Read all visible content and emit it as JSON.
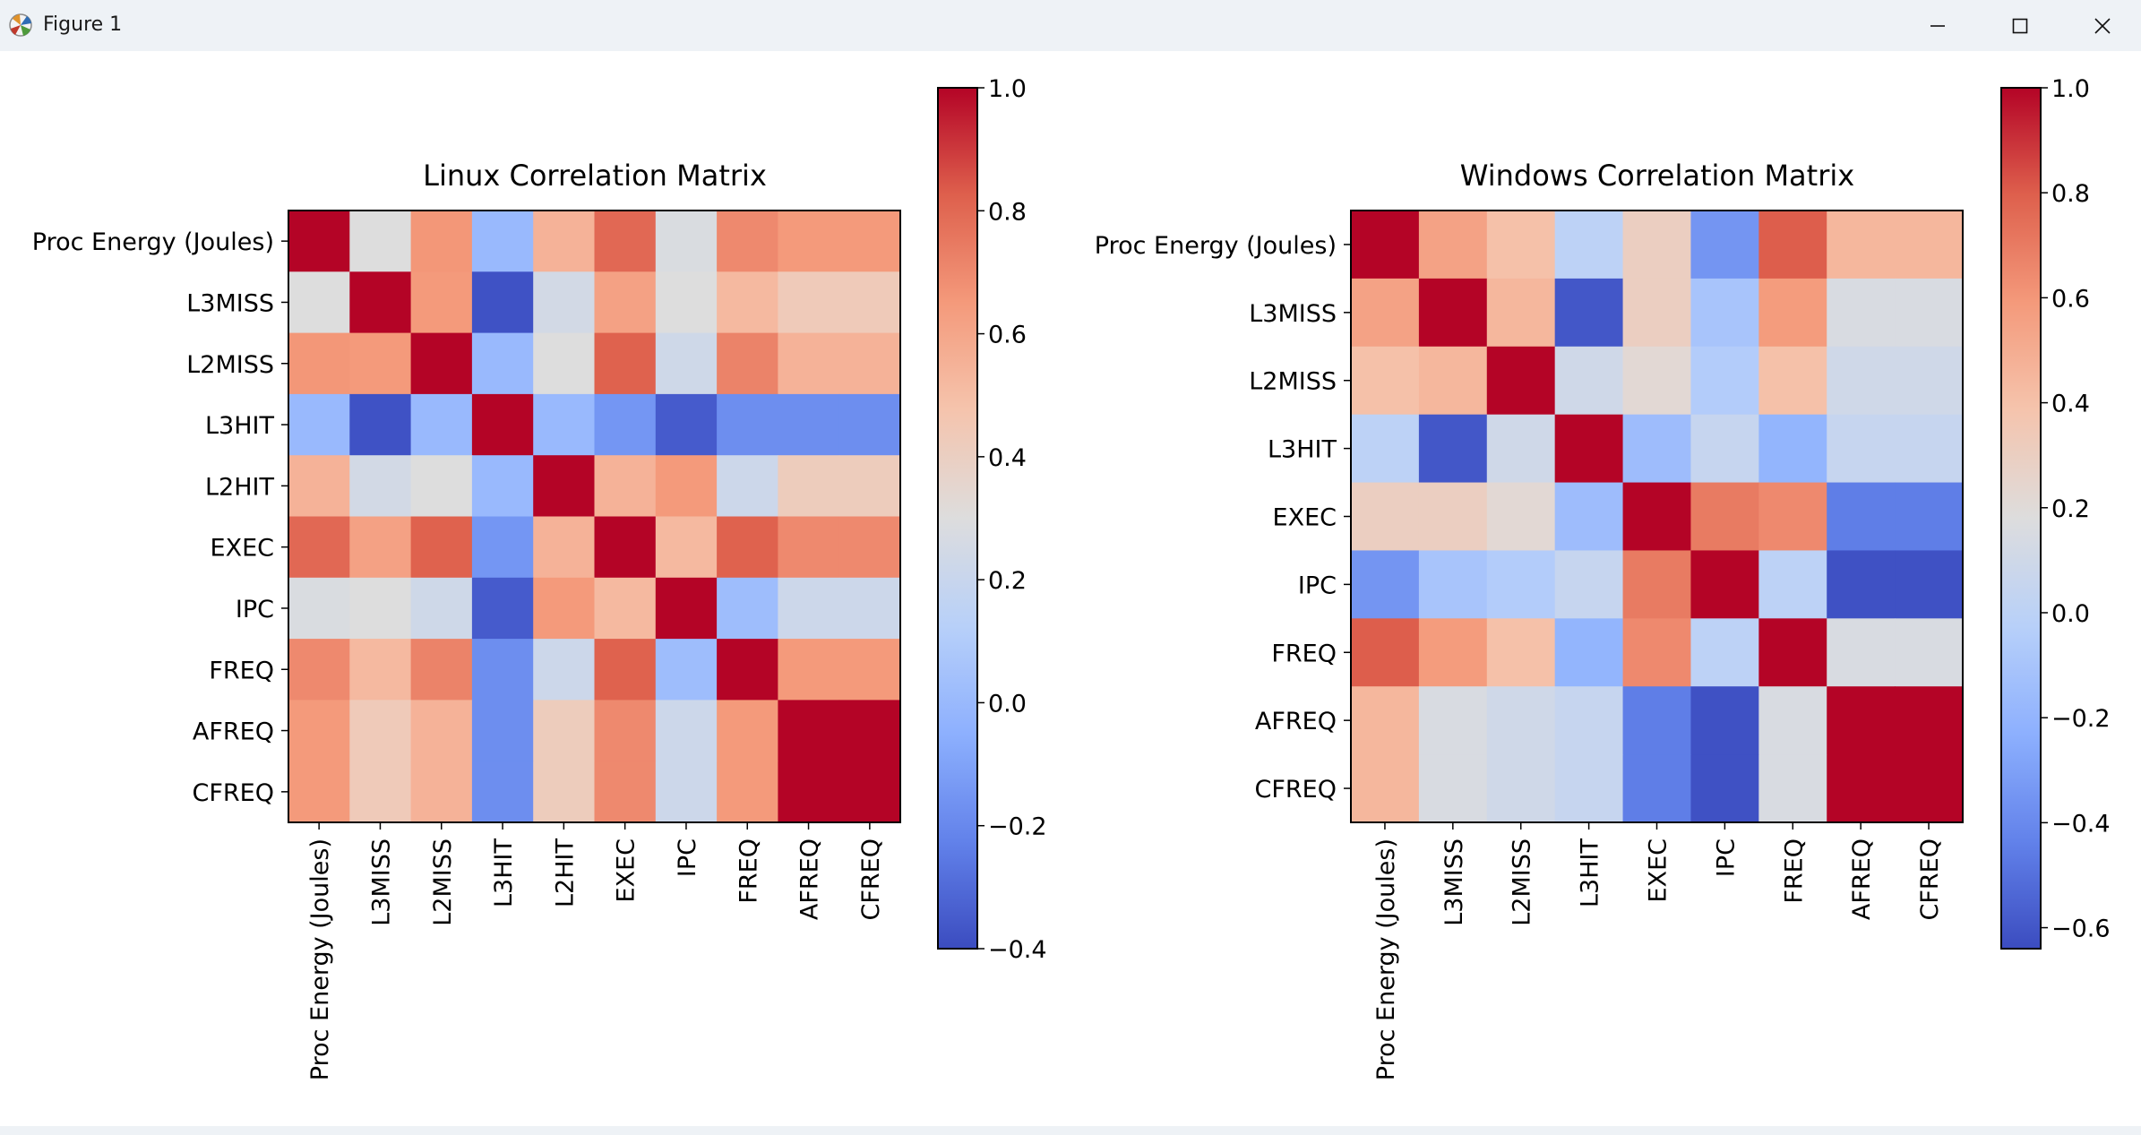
{
  "window": {
    "title": "Figure 1",
    "icons": {
      "app": "matplotlib-figure-icon",
      "minimize": "minimize-icon",
      "maximize": "maximize-icon",
      "close": "close-icon"
    }
  },
  "chart_data": [
    {
      "type": "heatmap",
      "title": "Linux Correlation Matrix",
      "colormap": "coolwarm",
      "labels": [
        "Proc Energy (Joules)",
        "L3MISS",
        "L2MISS",
        "L3HIT",
        "L2HIT",
        "EXEC",
        "IPC",
        "FREQ",
        "AFREQ",
        "CFREQ"
      ],
      "values": [
        [
          1.0,
          0.3,
          0.66,
          0.0,
          0.55,
          0.8,
          0.28,
          0.7,
          0.65,
          0.65
        ],
        [
          0.3,
          1.0,
          0.65,
          -0.38,
          0.25,
          0.62,
          0.3,
          0.52,
          0.43,
          0.43
        ],
        [
          0.66,
          0.65,
          1.0,
          0.0,
          0.3,
          0.82,
          0.23,
          0.72,
          0.55,
          0.55
        ],
        [
          0.0,
          -0.38,
          0.0,
          1.0,
          0.0,
          -0.15,
          -0.35,
          -0.18,
          -0.18,
          -0.18
        ],
        [
          0.55,
          0.25,
          0.3,
          0.0,
          1.0,
          0.55,
          0.65,
          0.22,
          0.42,
          0.42
        ],
        [
          0.8,
          0.62,
          0.82,
          -0.15,
          0.55,
          1.0,
          0.52,
          0.82,
          0.7,
          0.7
        ],
        [
          0.28,
          0.3,
          0.23,
          -0.35,
          0.65,
          0.52,
          1.0,
          0.02,
          0.22,
          0.22
        ],
        [
          0.7,
          0.52,
          0.72,
          -0.18,
          0.22,
          0.82,
          0.02,
          1.0,
          0.65,
          0.65
        ],
        [
          0.65,
          0.43,
          0.55,
          -0.18,
          0.42,
          0.7,
          0.22,
          0.65,
          1.0,
          1.0
        ],
        [
          0.65,
          0.43,
          0.55,
          -0.18,
          0.42,
          0.7,
          0.22,
          0.65,
          1.0,
          1.0
        ]
      ],
      "colorbar": {
        "min": -0.4,
        "max": 1.0,
        "ticks": [
          1.0,
          0.8,
          0.6,
          0.4,
          0.2,
          0.0,
          -0.2,
          -0.4
        ],
        "tick_labels": [
          "1.0",
          "0.8",
          "0.6",
          "0.4",
          "0.2",
          "0.0",
          "−0.2",
          "−0.4"
        ]
      }
    },
    {
      "type": "heatmap",
      "title": "Windows Correlation Matrix",
      "colormap": "coolwarm",
      "labels": [
        "Proc Energy (Joules)",
        "L3MISS",
        "L2MISS",
        "L3HIT",
        "EXEC",
        "IPC",
        "FREQ",
        "AFREQ",
        "CFREQ"
      ],
      "values": [
        [
          1.0,
          0.55,
          0.4,
          0.0,
          0.3,
          -0.35,
          0.8,
          0.45,
          0.45
        ],
        [
          0.55,
          1.0,
          0.45,
          -0.6,
          0.3,
          -0.1,
          0.58,
          0.15,
          0.15
        ],
        [
          0.4,
          0.45,
          1.0,
          0.1,
          0.22,
          -0.05,
          0.4,
          0.1,
          0.1
        ],
        [
          0.0,
          -0.6,
          0.1,
          1.0,
          -0.15,
          0.05,
          -0.2,
          0.05,
          0.05
        ],
        [
          0.3,
          0.3,
          0.22,
          -0.15,
          1.0,
          0.7,
          0.65,
          -0.45,
          -0.45
        ],
        [
          -0.35,
          -0.1,
          -0.05,
          0.05,
          0.7,
          1.0,
          0.0,
          -0.62,
          -0.62
        ],
        [
          0.8,
          0.58,
          0.4,
          -0.2,
          0.65,
          0.0,
          1.0,
          0.15,
          0.15
        ],
        [
          0.45,
          0.15,
          0.1,
          0.05,
          -0.45,
          -0.62,
          0.15,
          1.0,
          1.0
        ],
        [
          0.45,
          0.15,
          0.1,
          0.05,
          -0.45,
          -0.62,
          0.15,
          1.0,
          1.0
        ]
      ],
      "colorbar": {
        "min": -0.64,
        "max": 1.0,
        "ticks": [
          1.0,
          0.8,
          0.6,
          0.4,
          0.2,
          0.0,
          -0.2,
          -0.4,
          -0.6
        ],
        "tick_labels": [
          "1.0",
          "0.8",
          "0.6",
          "0.4",
          "0.2",
          "0.0",
          "−0.2",
          "−0.4",
          "−0.6"
        ]
      }
    }
  ]
}
